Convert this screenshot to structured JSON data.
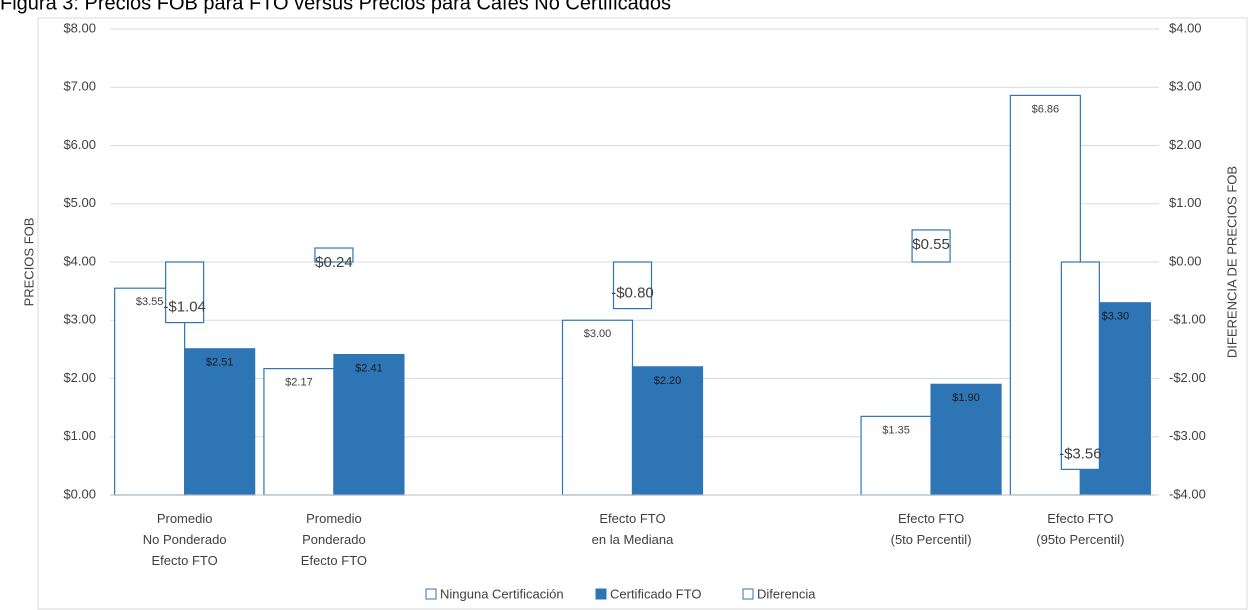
{
  "chart_data": {
    "type": "bar",
    "title": "Figura 3: Precios FOB para FTO versus Precios para Cafés No Certificados",
    "y_label": "PRECIOS FOB",
    "y2_label": "DIFERENCIA DE PRECIOS FOB",
    "categories": [
      "Promedio\nNo Ponderado\nEfecto FTO",
      "Promedio\nPonderado\nEfecto FTO",
      null,
      "Efecto FTO\nen la Mediana",
      null,
      "Efecto FTO\n(5to Percentil)",
      "Efecto FTO\n(95to Percentil)"
    ],
    "series": [
      {
        "name": "Ninguna Certificación",
        "color": "#ffffff",
        "values": [
          3.55,
          2.17,
          null,
          3.0,
          null,
          1.35,
          6.86
        ],
        "value_labels": [
          "$3.55",
          "$2.17",
          null,
          "$3.00",
          null,
          "$1.35",
          "$6.86"
        ]
      },
      {
        "name": "Certificado FTO",
        "color": "#2e75b6",
        "values": [
          2.51,
          2.41,
          null,
          2.2,
          null,
          1.9,
          3.3
        ],
        "value_labels": [
          "$2.51",
          "$2.41",
          null,
          "$2.20",
          null,
          "$1.90",
          "$3.30"
        ]
      },
      {
        "name": "Diferencia",
        "color": "#ffffff",
        "axis": "y2",
        "values": [
          -1.04,
          0.24,
          null,
          -0.8,
          null,
          0.55,
          -3.56
        ],
        "value_labels": [
          "-$1.04",
          "$0.24",
          null,
          "-$0.80",
          null,
          "$0.55",
          "-$3.56"
        ]
      }
    ],
    "ylim": [
      0,
      8
    ],
    "yticks": [
      {
        "value": 0,
        "label": "$0.00"
      },
      {
        "value": 1,
        "label": "$1.00"
      },
      {
        "value": 2,
        "label": "$2.00"
      },
      {
        "value": 3,
        "label": "$3.00"
      },
      {
        "value": 4,
        "label": "$4.00"
      },
      {
        "value": 5,
        "label": "$5.00"
      },
      {
        "value": 6,
        "label": "$6.00"
      },
      {
        "value": 7,
        "label": "$7.00"
      },
      {
        "value": 8,
        "label": "$8.00"
      }
    ],
    "y2lim": [
      -4,
      4
    ],
    "y2ticks": [
      {
        "value": -4,
        "label": "-$4.00"
      },
      {
        "value": -3,
        "label": "-$3.00"
      },
      {
        "value": -2,
        "label": "-$2.00"
      },
      {
        "value": -1,
        "label": "-$1.00"
      },
      {
        "value": 0,
        "label": "$0.00"
      },
      {
        "value": 1,
        "label": "$1.00"
      },
      {
        "value": 2,
        "label": "$2.00"
      },
      {
        "value": 3,
        "label": "$3.00"
      },
      {
        "value": 4,
        "label": "$4.00"
      }
    ],
    "grid": true,
    "legend": "bottom"
  }
}
